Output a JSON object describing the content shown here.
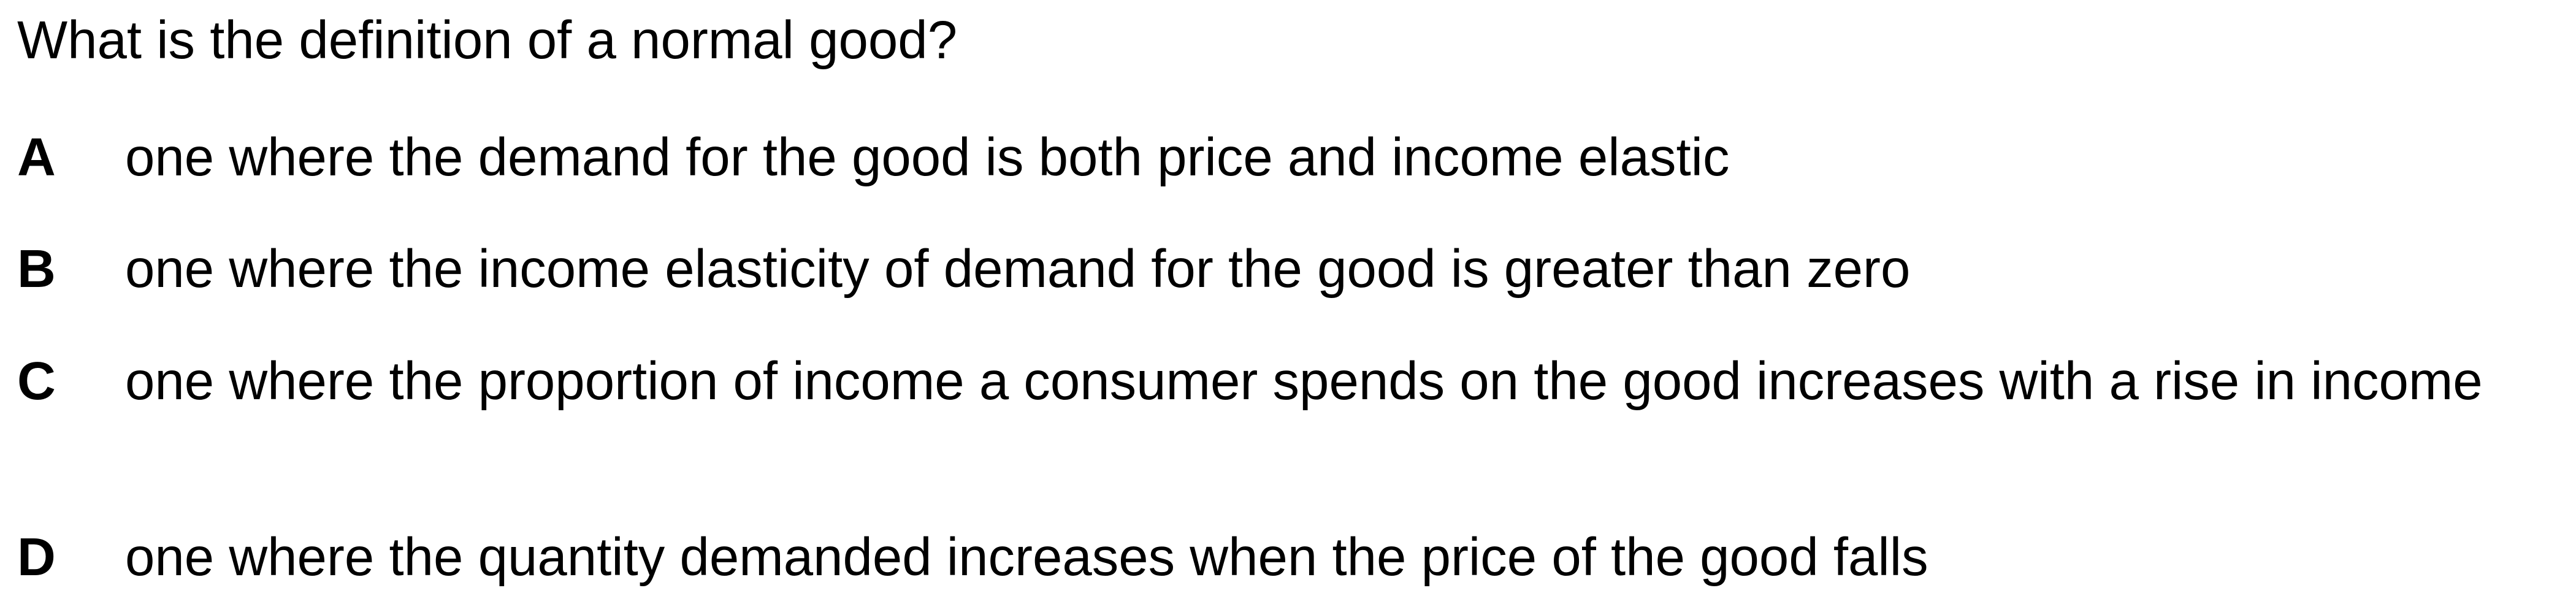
{
  "question": "What is the definition of a normal good?",
  "options": [
    {
      "letter": "A",
      "text": "one where the demand for the good is both price and income elastic"
    },
    {
      "letter": "B",
      "text": "one where the income elasticity of demand for the good is greater than zero"
    },
    {
      "letter": "C",
      "text": "one where the proportion of income a consumer spends on the good increases with a rise in income"
    },
    {
      "letter": "D",
      "text": "one where the quantity demanded increases when the price of the good falls"
    }
  ]
}
